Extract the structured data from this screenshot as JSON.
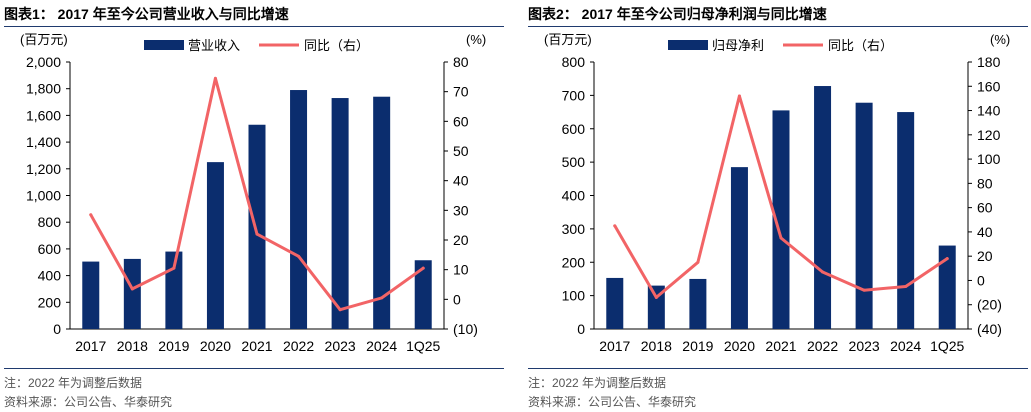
{
  "colors": {
    "bar": "#0b2d6e",
    "line": "#f26466",
    "rule": "#1f3a6e"
  },
  "charts": [
    {
      "title": "图表1：  2017 年至今公司营业收入与同比增速",
      "note": "注：2022 年为调整后数据",
      "source": "资料来源：公司公告、华泰研究",
      "chart_data": {
        "type": "bar",
        "categories": [
          "2017",
          "2018",
          "2019",
          "2020",
          "2021",
          "2022",
          "2023",
          "2024",
          "1Q25"
        ],
        "series": [
          {
            "name": "营业收入",
            "type": "bar",
            "axis": "left",
            "values": [
              505,
              525,
              580,
              1250,
              1530,
              1790,
              1730,
              1740,
              515
            ]
          },
          {
            "name": "同比（右）",
            "type": "line",
            "axis": "right",
            "values": [
              28.5,
              3.5,
              10.5,
              74.5,
              22,
              14.5,
              -3.5,
              0.5,
              10.5
            ]
          }
        ],
        "left_axis": {
          "unit": "(百万元)",
          "ylim": [
            0,
            2000
          ],
          "ticks": [
            "0",
            "200",
            "400",
            "600",
            "800",
            "1,000",
            "1,200",
            "1,400",
            "1,600",
            "1,800",
            "2,000"
          ]
        },
        "right_axis": {
          "unit": "(%)",
          "ylim": [
            -10,
            80
          ],
          "ticks": [
            "(10)",
            "0",
            "10",
            "20",
            "30",
            "40",
            "50",
            "60",
            "70",
            "80"
          ]
        },
        "legend": "top-center",
        "grid": false
      }
    },
    {
      "title": "图表2：  2017 年至今公司归母净利润与同比增速",
      "note": "注：2022 年为调整后数据",
      "source": "资料来源：公司公告、华泰研究",
      "chart_data": {
        "type": "bar",
        "categories": [
          "2017",
          "2018",
          "2019",
          "2020",
          "2021",
          "2022",
          "2023",
          "2024",
          "1Q25"
        ],
        "series": [
          {
            "name": "归母净利",
            "type": "bar",
            "axis": "left",
            "values": [
              153,
              130,
              150,
              485,
              655,
              728,
              678,
              650,
              250
            ]
          },
          {
            "name": "同比（右）",
            "type": "line",
            "axis": "right",
            "values": [
              45,
              -14,
              15,
              152,
              35,
              7,
              -8,
              -5,
              18
            ]
          }
        ],
        "left_axis": {
          "unit": "(百万元)",
          "ylim": [
            0,
            800
          ],
          "ticks": [
            "0",
            "100",
            "200",
            "300",
            "400",
            "500",
            "600",
            "700",
            "800"
          ]
        },
        "right_axis": {
          "unit": "(%)",
          "ylim": [
            -40,
            180
          ],
          "ticks": [
            "(40)",
            "(20)",
            "0",
            "20",
            "40",
            "60",
            "80",
            "100",
            "120",
            "140",
            "160",
            "180"
          ]
        },
        "legend": "top-center",
        "grid": false
      }
    }
  ]
}
